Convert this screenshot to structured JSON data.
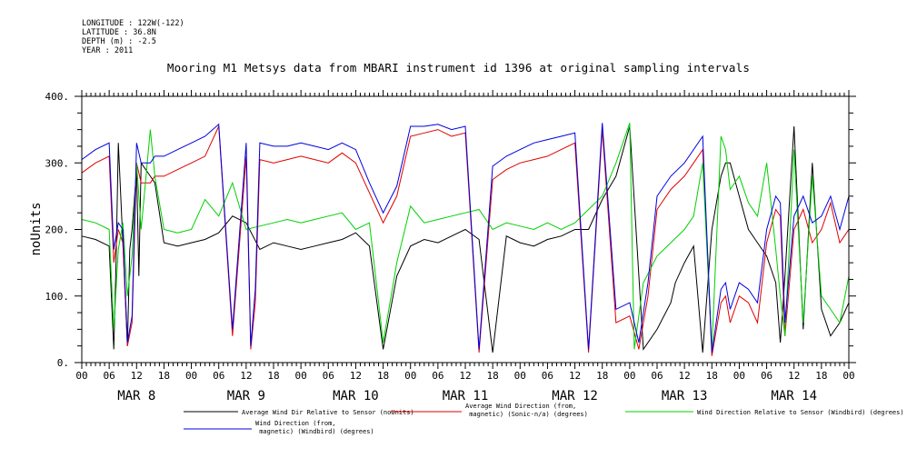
{
  "meta": {
    "longitude": "LONGITUDE : 122W(-122)",
    "latitude": "LATITUDE : 36.8N",
    "depth": "DEPTH (m) : -2.5",
    "year": "YEAR : 2011"
  },
  "chart_data": {
    "type": "line",
    "title": "Mooring M1 Metsys data from MBARI instrument id 1396 at original sampling intervals",
    "ylabel": "noUnits",
    "xlabel": "",
    "ylim": [
      0,
      400
    ],
    "yticks": [
      "0.",
      "100.",
      "200.",
      "300.",
      "400."
    ],
    "xlim_hours": [
      0,
      168
    ],
    "xtick_hour_labels": [
      "00",
      "06",
      "12",
      "18",
      "00",
      "06",
      "12",
      "18",
      "00",
      "06",
      "12",
      "18",
      "00",
      "06",
      "12",
      "18",
      "00",
      "06",
      "12",
      "18",
      "00",
      "06",
      "12",
      "18",
      "00",
      "06",
      "12",
      "18",
      "00"
    ],
    "day_labels": [
      "MAR  8",
      "MAR  9",
      "MAR 10",
      "MAR 11",
      "MAR 12",
      "MAR 13",
      "MAR 14"
    ],
    "grid": false,
    "legend_position": "bottom",
    "series": [
      {
        "name": "Average Wind Dir Relative to Sensor (noUnits)",
        "color": "#000000",
        "x": [
          0,
          3,
          6,
          7,
          7.5,
          8,
          9,
          10,
          10.5,
          11,
          12,
          12.5,
          13,
          15,
          16,
          18,
          21,
          24,
          27,
          30,
          33,
          36,
          39,
          42,
          45,
          48,
          51,
          54,
          57,
          60,
          63,
          66,
          69,
          72,
          75,
          78,
          81,
          84,
          87,
          90,
          93,
          96,
          99,
          102,
          105,
          108,
          111,
          114,
          117,
          120,
          123,
          126,
          129,
          130,
          132,
          134,
          136,
          138,
          140,
          141,
          142,
          144,
          146,
          148,
          150,
          152,
          153,
          154,
          156,
          158,
          160,
          162,
          164,
          166,
          168
        ],
        "y": [
          190,
          185,
          175,
          20,
          150,
          330,
          180,
          25,
          170,
          200,
          290,
          130,
          300,
          280,
          270,
          180,
          175,
          180,
          185,
          195,
          220,
          210,
          170,
          180,
          175,
          170,
          175,
          180,
          185,
          195,
          175,
          20,
          130,
          175,
          185,
          180,
          190,
          200,
          185,
          15,
          190,
          180,
          175,
          185,
          190,
          200,
          200,
          245,
          280,
          355,
          20,
          50,
          90,
          120,
          150,
          175,
          15,
          200,
          280,
          300,
          300,
          250,
          200,
          180,
          160,
          120,
          30,
          130,
          355,
          50,
          300,
          80,
          40,
          60,
          90
        ]
      },
      {
        "name": "Average Wind Direction (from, magnetic) (Sonic-n/a) (degrees)",
        "color": "#e00000",
        "x": [
          0,
          3,
          6,
          7,
          8,
          9,
          10,
          11,
          12,
          13,
          15,
          16,
          18,
          21,
          24,
          27,
          30,
          33,
          36,
          37,
          38,
          39,
          42,
          45,
          48,
          51,
          54,
          57,
          60,
          63,
          66,
          69,
          72,
          75,
          78,
          81,
          84,
          87,
          90,
          93,
          96,
          99,
          102,
          105,
          108,
          111,
          114,
          117,
          120,
          122,
          124,
          126,
          129,
          132,
          134,
          136,
          138,
          140,
          141,
          142,
          144,
          146,
          148,
          150,
          152,
          153,
          154,
          156,
          158,
          160,
          162,
          164,
          166,
          168
        ],
        "y": [
          285,
          300,
          310,
          150,
          200,
          180,
          25,
          60,
          300,
          270,
          270,
          280,
          280,
          290,
          300,
          310,
          355,
          40,
          310,
          20,
          90,
          305,
          300,
          305,
          310,
          305,
          300,
          315,
          300,
          255,
          210,
          250,
          340,
          345,
          350,
          340,
          345,
          15,
          275,
          290,
          300,
          305,
          310,
          320,
          330,
          15,
          350,
          60,
          70,
          20,
          100,
          230,
          260,
          280,
          300,
          320,
          10,
          90,
          100,
          60,
          100,
          90,
          60,
          180,
          230,
          220,
          40,
          200,
          230,
          180,
          200,
          240,
          180,
          200
        ]
      },
      {
        "name": "Wind Direction Relative to Sensor (Windbird) (degrees)",
        "color": "#00d000",
        "x": [
          0,
          3,
          6,
          7,
          8,
          9,
          10,
          11,
          12,
          13,
          15,
          16,
          18,
          21,
          24,
          27,
          30,
          33,
          36,
          39,
          42,
          45,
          48,
          51,
          54,
          57,
          60,
          63,
          66,
          69,
          72,
          75,
          78,
          81,
          84,
          87,
          90,
          93,
          96,
          99,
          102,
          105,
          108,
          111,
          114,
          117,
          120,
          121,
          123,
          126,
          129,
          132,
          134,
          136,
          138,
          140,
          141,
          142,
          144,
          146,
          148,
          150,
          152,
          153,
          154,
          156,
          158,
          160,
          162,
          164,
          166,
          168
        ],
        "y": [
          215,
          210,
          200,
          50,
          170,
          210,
          100,
          160,
          300,
          200,
          350,
          280,
          200,
          195,
          200,
          245,
          220,
          270,
          200,
          205,
          210,
          215,
          210,
          215,
          220,
          225,
          200,
          210,
          30,
          150,
          235,
          210,
          215,
          220,
          225,
          230,
          200,
          210,
          205,
          200,
          210,
          200,
          210,
          230,
          250,
          300,
          360,
          20,
          120,
          160,
          180,
          200,
          220,
          300,
          20,
          340,
          320,
          260,
          280,
          240,
          220,
          300,
          170,
          100,
          40,
          320,
          60,
          280,
          100,
          80,
          60,
          130
        ]
      },
      {
        "name": "Wind Direction (from, magnetic) (Windbird) (degrees)",
        "color": "#0000e0",
        "x": [
          0,
          3,
          6,
          7,
          8,
          9,
          10,
          11,
          12,
          13,
          15,
          16,
          18,
          21,
          24,
          27,
          30,
          33,
          36,
          37,
          38,
          39,
          42,
          45,
          48,
          51,
          54,
          57,
          60,
          63,
          66,
          69,
          72,
          75,
          78,
          81,
          84,
          87,
          90,
          93,
          96,
          99,
          102,
          105,
          108,
          111,
          114,
          117,
          120,
          122,
          124,
          126,
          129,
          132,
          134,
          136,
          138,
          140,
          141,
          142,
          144,
          146,
          148,
          150,
          152,
          153,
          154,
          156,
          158,
          160,
          162,
          164,
          166,
          168
        ],
        "y": [
          305,
          320,
          330,
          170,
          210,
          200,
          30,
          70,
          330,
          300,
          300,
          310,
          310,
          320,
          330,
          340,
          358,
          50,
          330,
          25,
          110,
          330,
          325,
          325,
          330,
          325,
          320,
          330,
          320,
          270,
          225,
          265,
          355,
          355,
          358,
          350,
          355,
          20,
          295,
          310,
          320,
          330,
          335,
          340,
          345,
          20,
          360,
          80,
          90,
          30,
          120,
          250,
          280,
          300,
          320,
          340,
          15,
          110,
          120,
          80,
          120,
          110,
          90,
          200,
          250,
          240,
          60,
          220,
          250,
          210,
          220,
          250,
          200,
          250
        ]
      }
    ]
  }
}
